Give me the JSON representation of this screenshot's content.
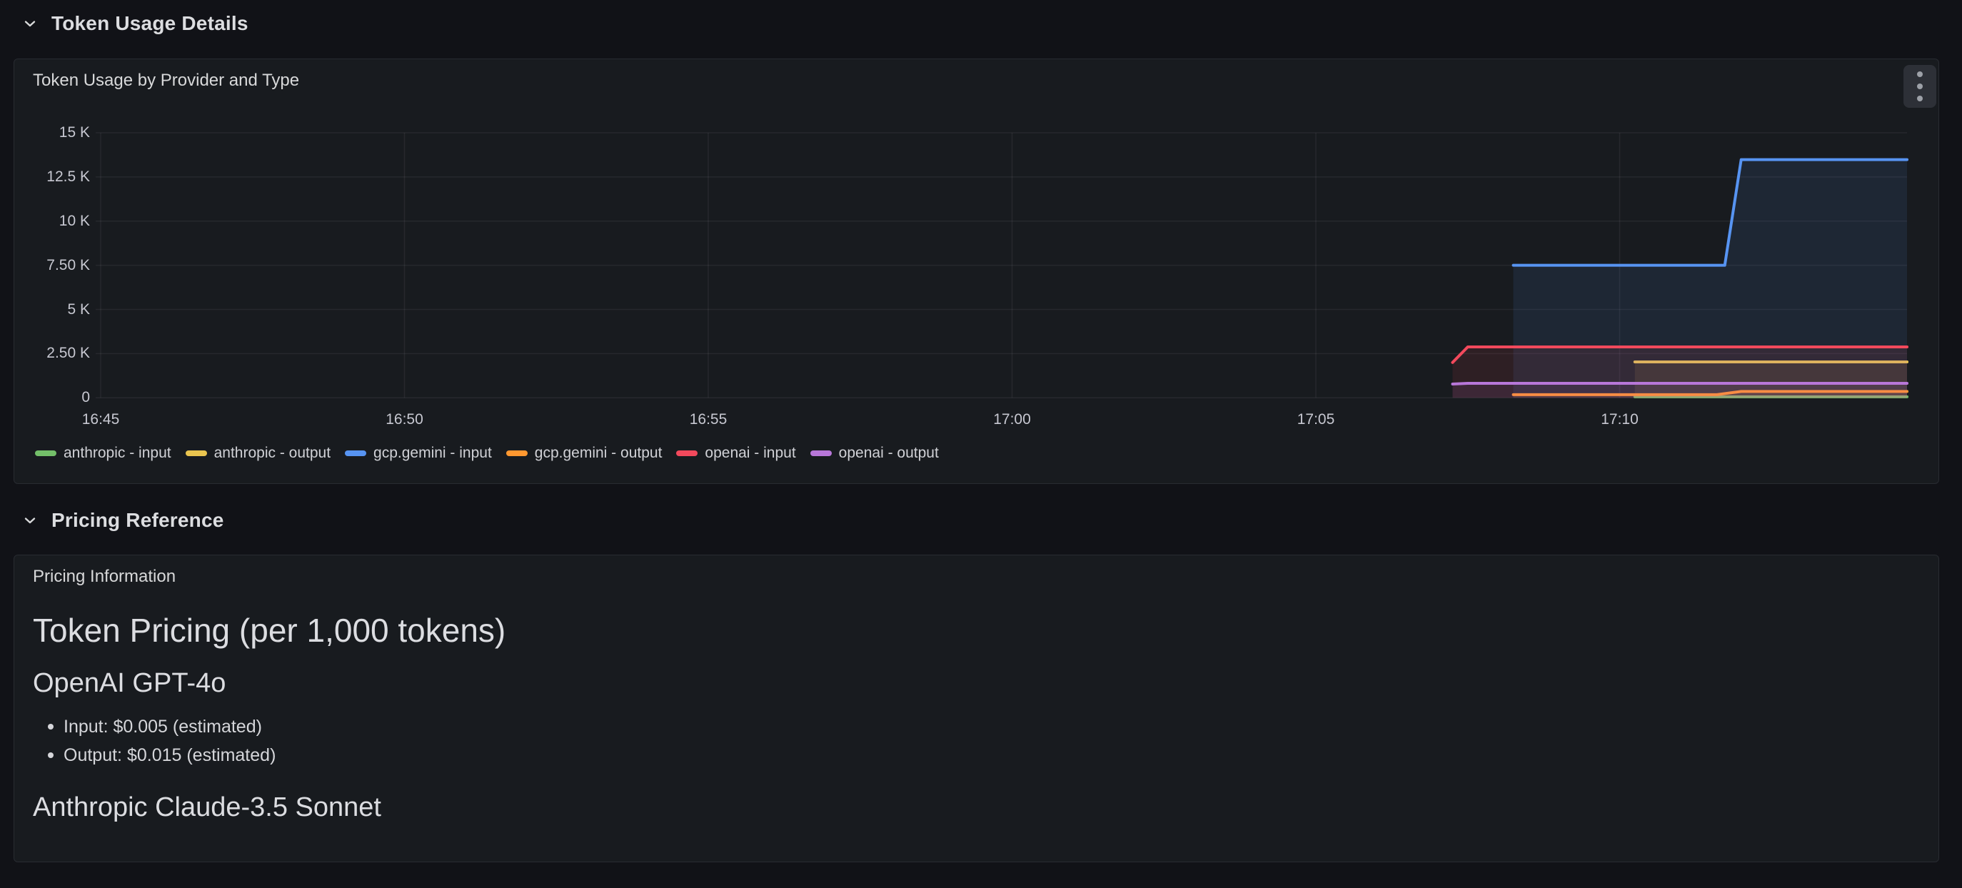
{
  "sections": [
    {
      "title": "Token Usage Details"
    },
    {
      "title": "Pricing Reference"
    }
  ],
  "chart_panel": {
    "title": "Token Usage by Provider and Type",
    "menu_icon": "kebab-menu-icon"
  },
  "chart_data": {
    "type": "line",
    "title": "Token Usage by Provider and Type",
    "ylim": [
      0,
      15000
    ],
    "grid": true,
    "legend_position": "bottom",
    "fill_opacity": 0.1,
    "line_width": 4,
    "y_ticks": [
      {
        "label": "0",
        "value": 0
      },
      {
        "label": "2.50 K",
        "value": 2500
      },
      {
        "label": "5 K",
        "value": 5000
      },
      {
        "label": "7.50 K",
        "value": 7500
      },
      {
        "label": "10 K",
        "value": 10000
      },
      {
        "label": "12.5 K",
        "value": 12500
      },
      {
        "label": "15 K",
        "value": 15000
      }
    ],
    "x_ticks": [
      {
        "label": "16:45",
        "min": 0
      },
      {
        "label": "16:50",
        "min": 5
      },
      {
        "label": "16:55",
        "min": 10
      },
      {
        "label": "17:00",
        "min": 15
      },
      {
        "label": "17:05",
        "min": 20
      },
      {
        "label": "17:10",
        "min": 25
      }
    ],
    "x_range_minutes": [
      -0.08,
      29.73
    ],
    "series": [
      {
        "name": "anthropic - input",
        "color": "#73BF69",
        "points": [
          {
            "time": "17:10:15",
            "min": 25.25,
            "value": 60
          },
          {
            "time": "17:14:45",
            "min": 29.73,
            "value": 60
          }
        ]
      },
      {
        "name": "anthropic - output",
        "color": "#EAC54F",
        "points": [
          {
            "time": "17:10:15",
            "min": 25.25,
            "value": 2030
          },
          {
            "time": "17:14:45",
            "min": 29.73,
            "value": 2030
          }
        ]
      },
      {
        "name": "gcp.gemini - input",
        "color": "#5794F2",
        "points": [
          {
            "time": "17:08:15",
            "min": 23.25,
            "value": 7500
          },
          {
            "time": "17:11:45",
            "min": 26.73,
            "value": 7500
          },
          {
            "time": "17:12:00",
            "min": 27.0,
            "value": 13480
          },
          {
            "time": "17:14:45",
            "min": 29.73,
            "value": 13480
          }
        ]
      },
      {
        "name": "gcp.gemini - output",
        "color": "#FF9830",
        "points": [
          {
            "time": "17:08:15",
            "min": 23.25,
            "value": 180
          },
          {
            "time": "17:11:40",
            "min": 26.6,
            "value": 180
          },
          {
            "time": "17:12:00",
            "min": 27.0,
            "value": 360
          },
          {
            "time": "17:14:45",
            "min": 29.73,
            "value": 360
          }
        ]
      },
      {
        "name": "openai - input",
        "color": "#F2495C",
        "points": [
          {
            "time": "17:07:15",
            "min": 22.25,
            "value": 2000
          },
          {
            "time": "17:07:30",
            "min": 22.5,
            "value": 2880
          },
          {
            "time": "17:14:45",
            "min": 29.73,
            "value": 2880
          }
        ]
      },
      {
        "name": "openai - output",
        "color": "#B877D9",
        "points": [
          {
            "time": "17:07:15",
            "min": 22.25,
            "value": 780
          },
          {
            "time": "17:07:30",
            "min": 22.5,
            "value": 820
          },
          {
            "time": "17:14:45",
            "min": 29.73,
            "value": 820
          }
        ]
      }
    ]
  },
  "pricing_panel": {
    "title": "Pricing Information",
    "heading": "Token Pricing (per 1,000 tokens)",
    "models": [
      {
        "name": "OpenAI GPT-4o",
        "bullets": [
          "Input: $0.005 (estimated)",
          "Output: $0.015 (estimated)"
        ]
      },
      {
        "name": "Anthropic Claude-3.5 Sonnet",
        "bullets": []
      }
    ]
  }
}
